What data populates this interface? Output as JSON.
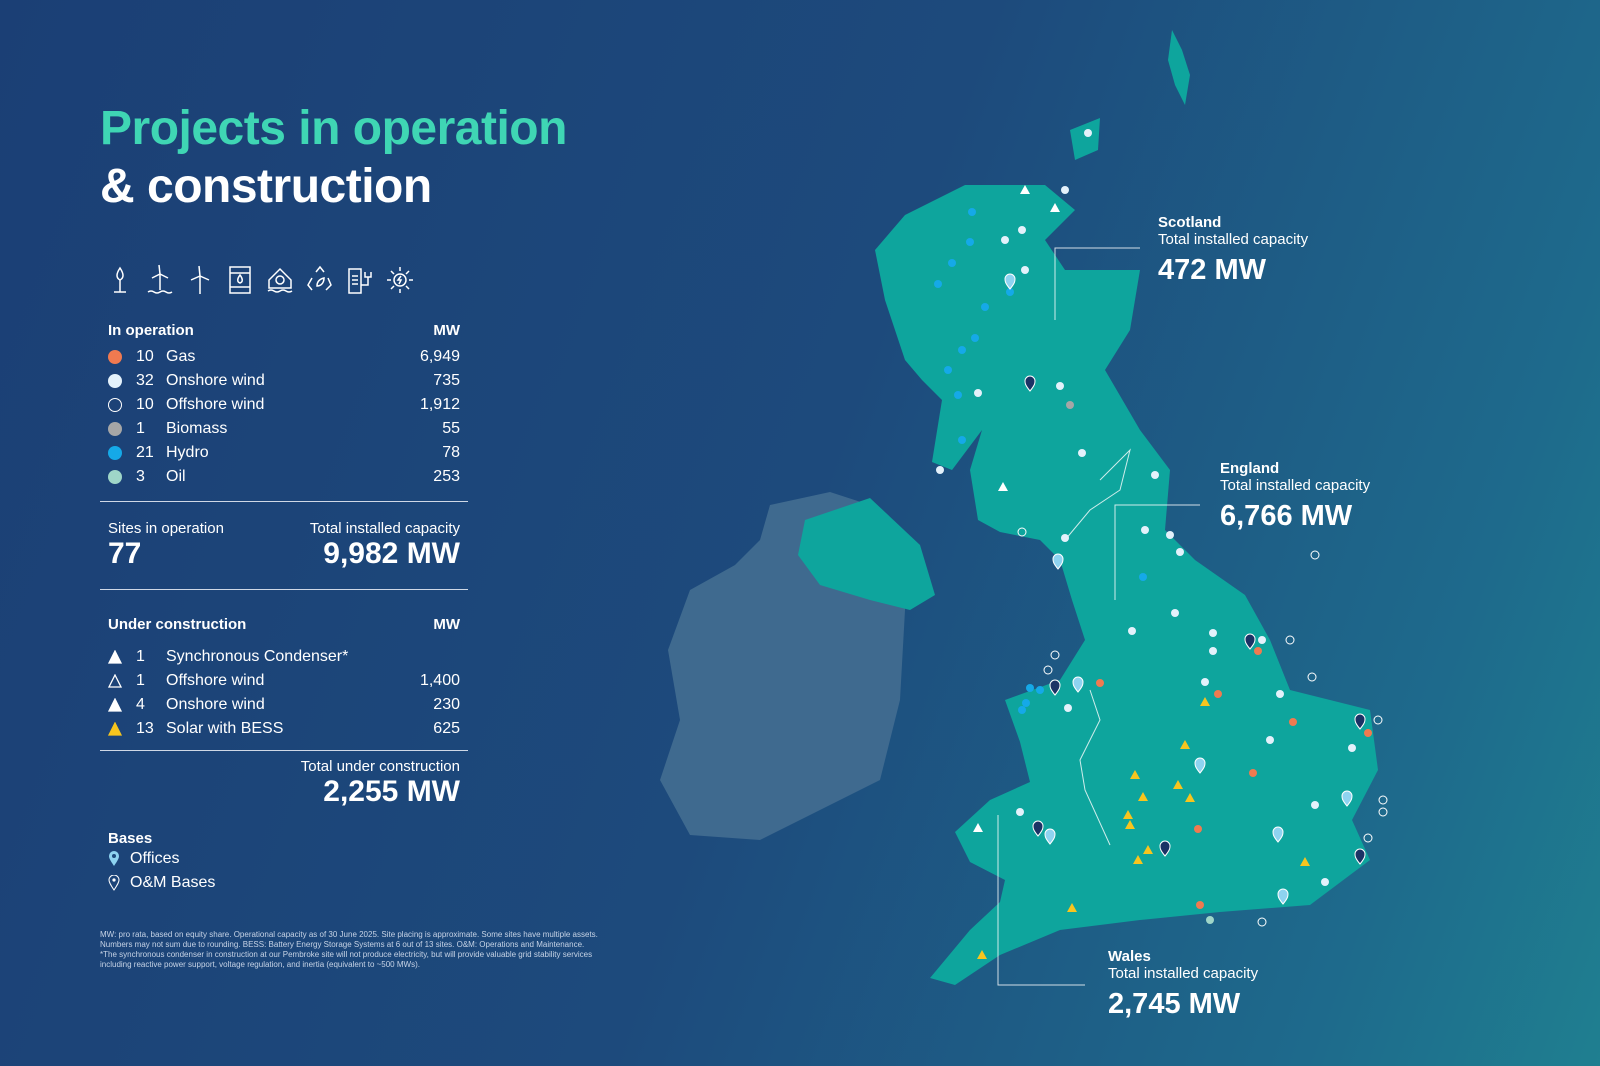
{
  "title": {
    "line1": "Projects in operation",
    "line2": "& construction"
  },
  "icons": [
    "gas-flame-icon",
    "offshore-wind-icon",
    "onshore-wind-icon",
    "oil-barrel-icon",
    "hydro-icon",
    "biomass-recycle-icon",
    "battery-storage-icon",
    "solar-icon"
  ],
  "in_operation": {
    "heading": "In operation",
    "unit": "MW",
    "items": [
      {
        "count": "10",
        "label": "Gas",
        "mw": "6,949",
        "color": "#f07a50",
        "style": "filled"
      },
      {
        "count": "32",
        "label": "Onshore wind",
        "mw": "735",
        "color": "#e3f1fb",
        "style": "filled"
      },
      {
        "count": "10",
        "label": "Offshore wind",
        "mw": "1,912",
        "color": "#ffffff",
        "style": "outline"
      },
      {
        "count": "1",
        "label": "Biomass",
        "mw": "55",
        "color": "#a6a6a6",
        "style": "filled"
      },
      {
        "count": "21",
        "label": "Hydro",
        "mw": "78",
        "color": "#15a9e8",
        "style": "filled"
      },
      {
        "count": "3",
        "label": "Oil",
        "mw": "253",
        "color": "#9fd6c8",
        "style": "filled"
      }
    ]
  },
  "summary": {
    "sites_label": "Sites in operation",
    "sites_value": "77",
    "capacity_label": "Total installed capacity",
    "capacity_value": "9,982 MW"
  },
  "under_construction": {
    "heading": "Under construction",
    "unit": "MW",
    "items": [
      {
        "count": "1",
        "label": "Synchronous Condenser*",
        "mw": "",
        "color": "#ffffff",
        "style": "filled"
      },
      {
        "count": "1",
        "label": "Offshore wind",
        "mw": "1,400",
        "color": "#ffffff",
        "style": "outline"
      },
      {
        "count": "4",
        "label": "Onshore wind",
        "mw": "230",
        "color": "#ffffff",
        "style": "filled"
      },
      {
        "count": "13",
        "label": "Solar with BESS",
        "mw": "625",
        "color": "#f7c51e",
        "style": "filled"
      }
    ],
    "total_label": "Total under construction",
    "total_value": "2,255 MW"
  },
  "bases": {
    "heading": "Bases",
    "items": [
      {
        "label": "Offices",
        "icon": "pin-filled-icon"
      },
      {
        "label": "O&M Bases",
        "icon": "pin-outline-icon"
      }
    ]
  },
  "footnote": [
    "MW: pro rata, based on equity share. Operational capacity as of 30 June 2025. Site placing is approximate. Some sites have multiple assets.",
    "Numbers may not sum due to rounding. BESS: Battery Energy Storage Systems at 6 out of 13 sites. O&M: Operations and Maintenance.",
    "*The synchronous condenser  in construction at our Pembroke site will not produce electricity, but will provide valuable grid stability services",
    "including reactive power support, voltage regulation, and inertia (equivalent to ~500 MWs)."
  ],
  "regions": [
    {
      "name": "Scotland",
      "caption": "Total installed capacity",
      "value": "472 MW"
    },
    {
      "name": "England",
      "caption": "Total installed capacity",
      "value": "6,766 MW"
    },
    {
      "name": "Wales",
      "caption": "Total installed capacity",
      "value": "2,745 MW"
    }
  ],
  "colors": {
    "accent": "#3fd6b4",
    "land": "#0ea59d",
    "ireland": "#3f6a8f"
  }
}
